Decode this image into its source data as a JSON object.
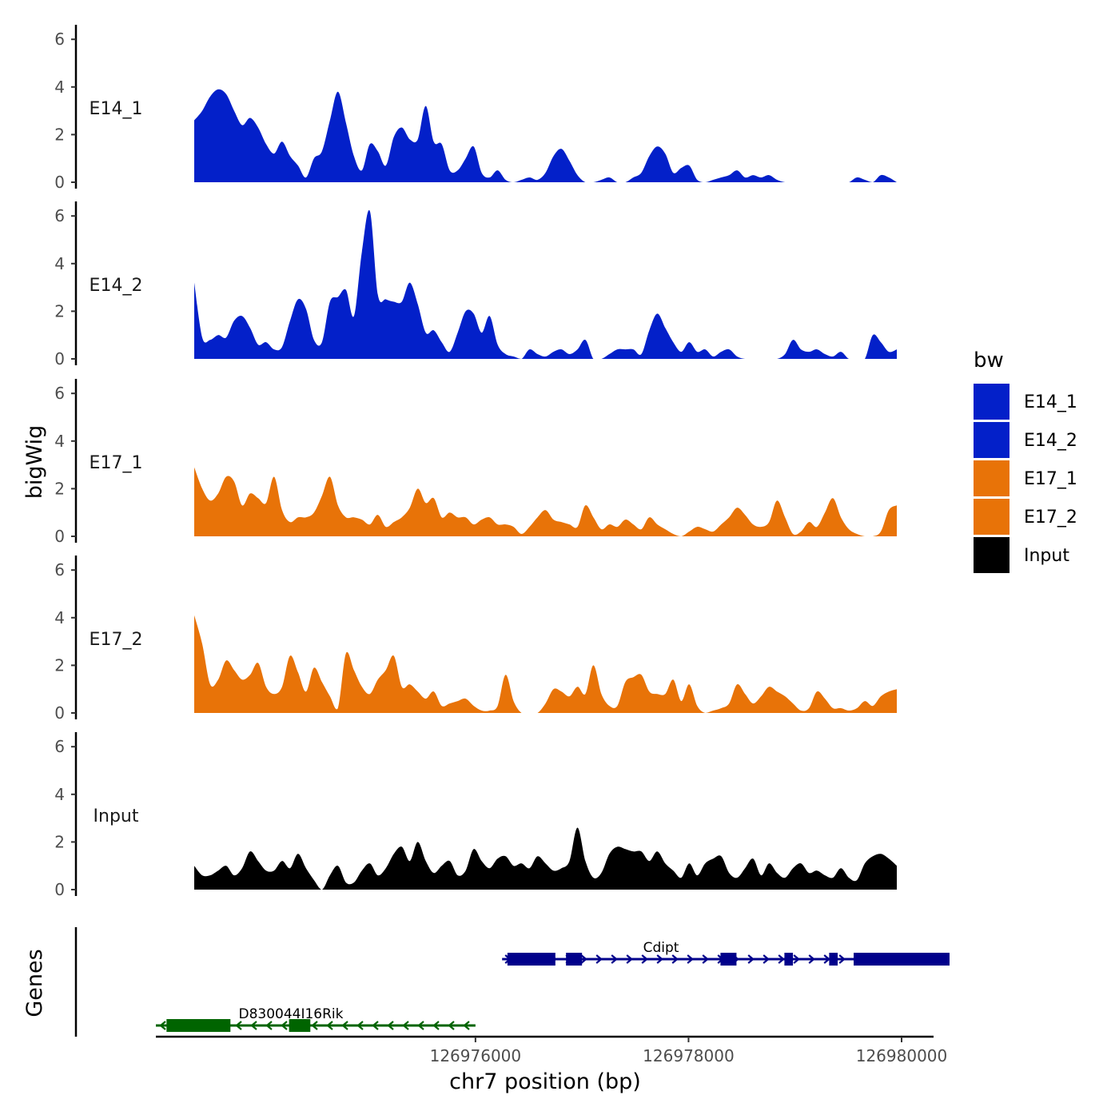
{
  "chart_data": {
    "type": "area",
    "chromosome": "chr7",
    "xlim": [
      126973000,
      126980300
    ],
    "xlabel": "chr7 position (bp)",
    "x_ticks": [
      126976000,
      126978000,
      126980000
    ],
    "ylabel": "bigWig",
    "ylim": [
      0,
      6.5
    ],
    "y_ticks": [
      0,
      2,
      4,
      6
    ],
    "gene_track_label": "Genes",
    "legend": {
      "title": "bw",
      "position": "right",
      "entries": [
        {
          "label": "E14_1",
          "color": "#0320c9"
        },
        {
          "label": "E14_2",
          "color": "#0320c9"
        },
        {
          "label": "E17_1",
          "color": "#e87308"
        },
        {
          "label": "E17_2",
          "color": "#e87308"
        },
        {
          "label": "Input",
          "color": "#000000"
        }
      ]
    },
    "tracks": [
      {
        "name": "E14_1",
        "color": "#0320c9",
        "values": [
          2.6,
          3.0,
          3.6,
          3.9,
          3.7,
          3.0,
          2.4,
          2.7,
          2.3,
          1.6,
          1.2,
          1.7,
          1.1,
          0.7,
          0.2,
          1.0,
          1.3,
          2.6,
          3.8,
          2.5,
          1.1,
          0.5,
          1.6,
          1.3,
          0.7,
          1.9,
          2.3,
          1.8,
          1.8,
          3.2,
          1.7,
          1.6,
          0.5,
          0.5,
          1.0,
          1.5,
          0.4,
          0.2,
          0.5,
          0.1,
          0.0,
          0.1,
          0.2,
          0.1,
          0.4,
          1.1,
          1.4,
          0.9,
          0.3,
          0.0,
          0.0,
          0.1,
          0.2,
          0.0,
          0.0,
          0.2,
          0.4,
          1.1,
          1.5,
          1.2,
          0.4,
          0.6,
          0.7,
          0.1,
          0.0,
          0.1,
          0.2,
          0.3,
          0.5,
          0.2,
          0.3,
          0.2,
          0.3,
          0.1,
          0.0,
          0.0,
          0.0,
          0.0,
          0.0,
          0.0,
          0.0,
          0.0,
          0.0,
          0.2,
          0.1,
          0.0,
          0.3,
          0.2,
          0.0
        ]
      },
      {
        "name": "E14_2",
        "color": "#0320c9",
        "values": [
          3.2,
          0.9,
          0.8,
          1.0,
          0.9,
          1.6,
          1.8,
          1.3,
          0.6,
          0.7,
          0.4,
          0.5,
          1.6,
          2.5,
          2.1,
          0.8,
          0.7,
          2.4,
          2.6,
          2.9,
          1.8,
          4.5,
          6.2,
          2.7,
          2.5,
          2.4,
          2.4,
          3.2,
          2.3,
          1.1,
          1.2,
          0.7,
          0.3,
          1.1,
          2.0,
          1.9,
          1.1,
          1.8,
          0.6,
          0.2,
          0.1,
          0.0,
          0.4,
          0.2,
          0.1,
          0.3,
          0.4,
          0.2,
          0.4,
          0.8,
          0.0,
          0.0,
          0.2,
          0.4,
          0.4,
          0.4,
          0.2,
          1.2,
          1.9,
          1.3,
          0.7,
          0.3,
          0.7,
          0.3,
          0.4,
          0.1,
          0.3,
          0.4,
          0.1,
          0.0,
          0.0,
          0.0,
          0.0,
          0.0,
          0.2,
          0.8,
          0.4,
          0.3,
          0.4,
          0.2,
          0.1,
          0.3,
          0.0,
          0.0,
          0.0,
          1.0,
          0.7,
          0.3,
          0.4
        ]
      },
      {
        "name": "E17_1",
        "color": "#e87308",
        "values": [
          2.9,
          2.0,
          1.5,
          1.8,
          2.5,
          2.3,
          1.3,
          1.8,
          1.6,
          1.4,
          2.5,
          1.1,
          0.6,
          0.8,
          0.8,
          1.0,
          1.7,
          2.5,
          1.3,
          0.8,
          0.8,
          0.7,
          0.5,
          0.9,
          0.4,
          0.6,
          0.8,
          1.2,
          2.0,
          1.4,
          1.6,
          0.8,
          1.0,
          0.8,
          0.8,
          0.5,
          0.7,
          0.8,
          0.5,
          0.5,
          0.4,
          0.1,
          0.4,
          0.8,
          1.1,
          0.7,
          0.6,
          0.5,
          0.4,
          1.3,
          0.8,
          0.3,
          0.5,
          0.4,
          0.7,
          0.5,
          0.3,
          0.8,
          0.5,
          0.3,
          0.1,
          0.0,
          0.2,
          0.4,
          0.3,
          0.2,
          0.5,
          0.8,
          1.2,
          0.9,
          0.5,
          0.4,
          0.6,
          1.5,
          0.8,
          0.1,
          0.2,
          0.6,
          0.4,
          1.0,
          1.6,
          0.8,
          0.3,
          0.1,
          0.0,
          0.0,
          0.2,
          1.1,
          1.3
        ]
      },
      {
        "name": "E17_2",
        "color": "#e87308",
        "values": [
          4.1,
          2.9,
          1.2,
          1.4,
          2.2,
          1.8,
          1.4,
          1.6,
          2.1,
          1.1,
          0.8,
          1.1,
          2.4,
          1.7,
          0.9,
          1.9,
          1.3,
          0.7,
          0.2,
          2.5,
          1.8,
          1.1,
          0.8,
          1.4,
          1.8,
          2.4,
          1.1,
          1.2,
          0.9,
          0.6,
          0.9,
          0.3,
          0.4,
          0.5,
          0.6,
          0.3,
          0.1,
          0.1,
          0.3,
          1.6,
          0.5,
          0.0,
          0.0,
          0.0,
          0.4,
          1.0,
          0.9,
          0.7,
          1.1,
          0.8,
          2.0,
          0.8,
          0.3,
          0.3,
          1.3,
          1.5,
          1.6,
          0.9,
          0.8,
          0.8,
          1.4,
          0.5,
          1.2,
          0.3,
          0.0,
          0.1,
          0.2,
          0.4,
          1.2,
          0.8,
          0.4,
          0.7,
          1.1,
          0.9,
          0.7,
          0.4,
          0.1,
          0.2,
          0.9,
          0.6,
          0.2,
          0.2,
          0.1,
          0.2,
          0.5,
          0.3,
          0.7,
          0.9,
          1.0
        ]
      },
      {
        "name": "Input",
        "color": "#000000",
        "values": [
          1.0,
          0.6,
          0.6,
          0.8,
          1.0,
          0.6,
          0.9,
          1.6,
          1.2,
          0.8,
          0.8,
          1.2,
          0.9,
          1.5,
          0.9,
          0.4,
          0.0,
          0.6,
          1.0,
          0.3,
          0.3,
          0.8,
          1.1,
          0.6,
          0.9,
          1.5,
          1.8,
          1.2,
          2.0,
          1.2,
          0.7,
          1.0,
          1.2,
          0.6,
          0.8,
          1.7,
          1.2,
          0.9,
          1.3,
          1.4,
          1.0,
          1.1,
          0.9,
          1.4,
          1.1,
          0.8,
          0.9,
          1.2,
          2.6,
          1.2,
          0.5,
          0.7,
          1.5,
          1.8,
          1.7,
          1.6,
          1.6,
          1.2,
          1.6,
          1.1,
          0.8,
          0.5,
          1.1,
          0.6,
          1.1,
          1.3,
          1.4,
          0.7,
          0.5,
          0.9,
          1.3,
          0.6,
          1.1,
          0.7,
          0.5,
          0.9,
          1.1,
          0.7,
          0.8,
          0.6,
          0.5,
          0.9,
          0.5,
          0.4,
          1.1,
          1.4,
          1.5,
          1.3,
          1.0
        ]
      }
    ],
    "genes": [
      {
        "name": "Cdipt",
        "strand": "+",
        "start": 126976250,
        "end": 126980450,
        "color": "#00008b",
        "exons": [
          [
            126976300,
            126976750
          ],
          [
            126976850,
            126977000
          ],
          [
            126978300,
            126978450
          ],
          [
            126978900,
            126978980
          ],
          [
            126979320,
            126979400
          ],
          [
            126979550,
            126980450
          ]
        ]
      },
      {
        "name": "D830044I16Rik",
        "strand": "-",
        "start": 126973000,
        "end": 126976000,
        "color": "#006400",
        "exons": [
          [
            126973100,
            126973700
          ],
          [
            126974250,
            126974450
          ]
        ]
      }
    ]
  }
}
